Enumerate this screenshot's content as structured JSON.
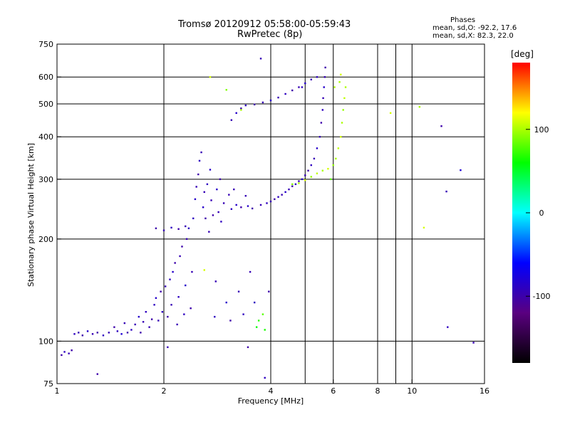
{
  "header": {
    "title_line1": "Tromsø 20120912 05:58:00-05:59:43",
    "title_line2": "RwPretec (8p)"
  },
  "stats": {
    "title": "Phases",
    "o_line": "mean, sd,O: -92.2, 17.6",
    "x_line": "mean, sd,X:  82.3, 22.0"
  },
  "colorbar": {
    "label": "[deg]",
    "range": [
      -180,
      180
    ],
    "ticks": [
      100,
      0,
      -100
    ],
    "colormap": [
      "#000000",
      "#5a0080",
      "#0000ff",
      "#00ffff",
      "#00ff00",
      "#ffff00",
      "#ff0000"
    ]
  },
  "chart_data": {
    "type": "scatter",
    "title": "",
    "xlabel": "Frequency [MHz]",
    "ylabel": "Stationary phase Virtual Height [km]",
    "xscale": "log",
    "yscale": "log",
    "xlim": [
      1,
      16
    ],
    "ylim": [
      75,
      750
    ],
    "xticks": [
      1,
      2,
      4,
      6,
      8,
      10,
      16
    ],
    "xgrid": [
      2,
      4,
      5,
      6,
      8,
      9,
      10
    ],
    "yticks": [
      75,
      100,
      200,
      300,
      400,
      500,
      600,
      750
    ],
    "ygrid": [
      100,
      200,
      300,
      400,
      500,
      600
    ],
    "grid": true,
    "color_by": "phase",
    "points": [
      [
        1.03,
        91,
        -100
      ],
      [
        1.05,
        93,
        -90
      ],
      [
        1.08,
        92,
        -95
      ],
      [
        1.1,
        94,
        -100
      ],
      [
        1.12,
        105,
        -90
      ],
      [
        1.15,
        106,
        -95
      ],
      [
        1.18,
        104,
        -100
      ],
      [
        1.22,
        107,
        -85
      ],
      [
        1.26,
        105,
        -95
      ],
      [
        1.3,
        106,
        -100
      ],
      [
        1.35,
        104,
        -90
      ],
      [
        1.4,
        106,
        -95
      ],
      [
        1.45,
        110,
        -100
      ],
      [
        1.48,
        107,
        -90
      ],
      [
        1.52,
        105,
        -80
      ],
      [
        1.55,
        113,
        -95
      ],
      [
        1.58,
        106,
        -100
      ],
      [
        1.62,
        108,
        -90
      ],
      [
        1.66,
        112,
        -95
      ],
      [
        1.7,
        118,
        -85
      ],
      [
        1.72,
        106,
        -100
      ],
      [
        1.75,
        114,
        -95
      ],
      [
        1.78,
        122,
        -90
      ],
      [
        1.82,
        110,
        -95
      ],
      [
        1.85,
        116,
        -100
      ],
      [
        1.88,
        128,
        -90
      ],
      [
        1.9,
        134,
        -85
      ],
      [
        1.93,
        115,
        -95
      ],
      [
        1.96,
        140,
        -100
      ],
      [
        1.98,
        122,
        -90
      ],
      [
        2.02,
        145,
        -95
      ],
      [
        2.05,
        118,
        -100
      ],
      [
        2.08,
        152,
        -90
      ],
      [
        2.1,
        128,
        -95
      ],
      [
        2.12,
        160,
        -85
      ],
      [
        2.15,
        170,
        -100
      ],
      [
        2.18,
        112,
        -95
      ],
      [
        2.2,
        135,
        -90
      ],
      [
        2.22,
        178,
        -95
      ],
      [
        2.25,
        190,
        -100
      ],
      [
        2.28,
        120,
        -90
      ],
      [
        2.3,
        146,
        -85
      ],
      [
        2.32,
        200,
        -95
      ],
      [
        2.35,
        215,
        -90
      ],
      [
        2.38,
        125,
        -100
      ],
      [
        2.4,
        160,
        -95
      ],
      [
        2.42,
        230,
        -90
      ],
      [
        2.45,
        262,
        -85
      ],
      [
        2.47,
        285,
        -95
      ],
      [
        2.5,
        310,
        -100
      ],
      [
        2.52,
        340,
        -90
      ],
      [
        2.55,
        360,
        -95
      ],
      [
        2.58,
        248,
        -85
      ],
      [
        2.6,
        275,
        -95
      ],
      [
        2.62,
        230,
        -100
      ],
      [
        2.65,
        290,
        -90
      ],
      [
        2.68,
        210,
        -95
      ],
      [
        2.7,
        320,
        -85
      ],
      [
        2.72,
        260,
        -95
      ],
      [
        2.75,
        235,
        -100
      ],
      [
        2.78,
        118,
        -90
      ],
      [
        2.8,
        150,
        -95
      ],
      [
        2.82,
        280,
        -85
      ],
      [
        2.85,
        240,
        -95
      ],
      [
        2.88,
        300,
        -100
      ],
      [
        2.9,
        225,
        -90
      ],
      [
        2.95,
        255,
        -95
      ],
      [
        3.0,
        130,
        -85
      ],
      [
        3.05,
        270,
        -95
      ],
      [
        3.08,
        115,
        -100
      ],
      [
        3.1,
        245,
        -90
      ],
      [
        3.15,
        280,
        -95
      ],
      [
        3.2,
        252,
        -85
      ],
      [
        3.25,
        140,
        -95
      ],
      [
        3.3,
        248,
        -100
      ],
      [
        3.35,
        120,
        -90
      ],
      [
        3.4,
        268,
        -95
      ],
      [
        3.45,
        250,
        -85
      ],
      [
        3.5,
        160,
        -95
      ],
      [
        3.55,
        246,
        -100
      ],
      [
        3.6,
        130,
        -90
      ],
      [
        3.65,
        110,
        60
      ],
      [
        3.7,
        115,
        70
      ],
      [
        3.75,
        252,
        -95
      ],
      [
        3.8,
        120,
        80
      ],
      [
        3.85,
        108,
        65
      ],
      [
        3.9,
        255,
        -90
      ],
      [
        4.0,
        258,
        -95
      ],
      [
        4.1,
        262,
        -100
      ],
      [
        4.2,
        266,
        -90
      ],
      [
        4.3,
        270,
        -95
      ],
      [
        4.4,
        275,
        -85
      ],
      [
        4.5,
        280,
        -95
      ],
      [
        4.6,
        286,
        -100
      ],
      [
        4.7,
        290,
        -90
      ],
      [
        4.8,
        296,
        -95
      ],
      [
        4.9,
        300,
        -85
      ],
      [
        5.0,
        308,
        -95
      ],
      [
        5.1,
        318,
        -100
      ],
      [
        5.2,
        330,
        -90
      ],
      [
        5.3,
        345,
        -95
      ],
      [
        5.4,
        370,
        -85
      ],
      [
        5.5,
        400,
        -95
      ],
      [
        5.55,
        440,
        -100
      ],
      [
        5.6,
        480,
        -90
      ],
      [
        5.62,
        520,
        -95
      ],
      [
        5.65,
        560,
        -85
      ],
      [
        5.68,
        600,
        -95
      ],
      [
        5.7,
        640,
        -100
      ],
      [
        5.4,
        600,
        -90
      ],
      [
        5.2,
        590,
        -95
      ],
      [
        5.0,
        575,
        -85
      ],
      [
        4.8,
        560,
        -95
      ],
      [
        4.6,
        548,
        -100
      ],
      [
        4.4,
        535,
        -90
      ],
      [
        4.2,
        522,
        -95
      ],
      [
        4.0,
        512,
        -85
      ],
      [
        3.8,
        505,
        -95
      ],
      [
        3.6,
        498,
        -100
      ],
      [
        3.4,
        495,
        -90
      ],
      [
        3.3,
        485,
        -95
      ],
      [
        3.2,
        470,
        -85
      ],
      [
        3.1,
        448,
        -95
      ],
      [
        4.6,
        290,
        90
      ],
      [
        4.8,
        292,
        100
      ],
      [
        5.0,
        298,
        110
      ],
      [
        5.2,
        305,
        95
      ],
      [
        5.4,
        312,
        105
      ],
      [
        5.6,
        318,
        100
      ],
      [
        5.8,
        322,
        110
      ],
      [
        6.0,
        330,
        95
      ],
      [
        6.1,
        345,
        100
      ],
      [
        6.2,
        370,
        105
      ],
      [
        6.3,
        400,
        110
      ],
      [
        6.35,
        440,
        100
      ],
      [
        6.4,
        480,
        95
      ],
      [
        6.45,
        520,
        105
      ],
      [
        6.5,
        560,
        100
      ],
      [
        6.3,
        610,
        110
      ],
      [
        6.25,
        580,
        100
      ],
      [
        5.9,
        300,
        80
      ],
      [
        2.7,
        600,
        110
      ],
      [
        3.0,
        550,
        90
      ],
      [
        3.3,
        480,
        100
      ],
      [
        1.9,
        215,
        -100
      ],
      [
        2.0,
        212,
        -95
      ],
      [
        2.1,
        216,
        -90
      ],
      [
        2.2,
        214,
        -100
      ],
      [
        2.3,
        218,
        -95
      ],
      [
        2.6,
        162,
        110
      ],
      [
        3.45,
        96,
        -100
      ],
      [
        3.85,
        78,
        -90
      ],
      [
        8.7,
        470,
        110
      ],
      [
        10.5,
        490,
        100
      ],
      [
        10.8,
        216,
        110
      ],
      [
        12.1,
        430,
        -100
      ],
      [
        12.5,
        276,
        -95
      ],
      [
        12.6,
        110,
        -90
      ],
      [
        13.7,
        319,
        -80
      ],
      [
        14.9,
        99,
        -95
      ],
      [
        1.3,
        80,
        -100
      ],
      [
        2.05,
        96,
        -95
      ],
      [
        3.95,
        140,
        -100
      ],
      [
        3.75,
        680,
        -95
      ],
      [
        4.9,
        560,
        -90
      ],
      [
        6.05,
        560,
        100
      ]
    ]
  }
}
